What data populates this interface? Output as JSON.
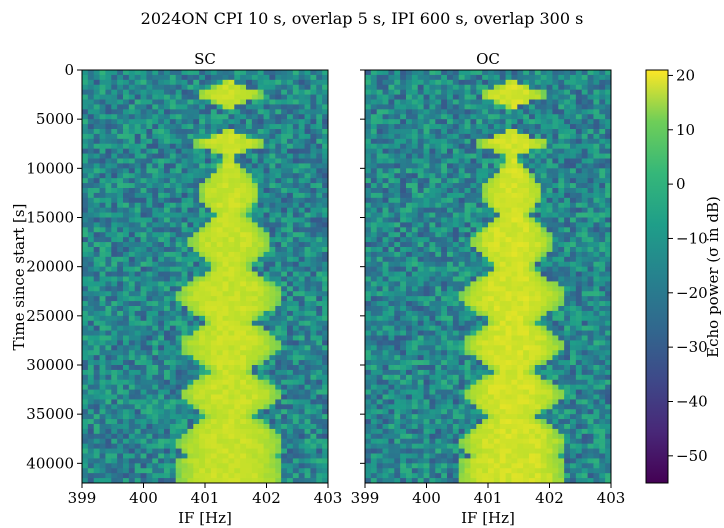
{
  "chart_data": {
    "type": "heatmap",
    "title": "2024ON CPI 10 s, overlap 5 s, IPI 600 s, overlap 300 s",
    "ylabel": "Time since start [s]",
    "panels": [
      {
        "name": "SC",
        "xlabel": "IF [Hz]"
      },
      {
        "name": "OC",
        "xlabel": "IF [Hz]"
      }
    ],
    "xlim": [
      399,
      403
    ],
    "xticks": [
      "399",
      "400",
      "401",
      "402",
      "403"
    ],
    "ylim": [
      42000,
      0
    ],
    "yticks": [
      "0",
      "5000",
      "10000",
      "15000",
      "20000",
      "25000",
      "30000",
      "35000",
      "40000"
    ],
    "colorbar": {
      "label": "Echo power (σ in dB)",
      "range": [
        -55,
        21
      ],
      "ticks": [
        "20",
        "10",
        "0",
        "−10",
        "−20",
        "−30",
        "−40",
        "−50"
      ],
      "colormap": "viridis"
    },
    "echo_center_hz": 401.4,
    "background_db": -20,
    "colors": {
      "low": "#440154",
      "mid": "#21918c",
      "high": "#fde725"
    }
  }
}
